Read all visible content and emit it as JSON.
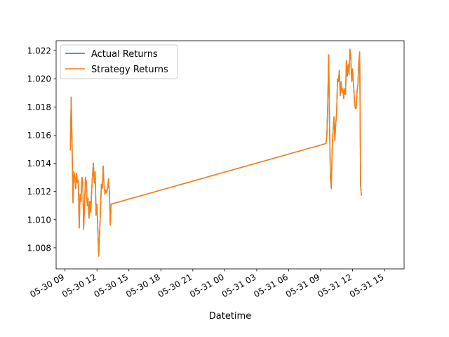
{
  "chart_data": {
    "type": "line",
    "title": "",
    "xlabel": "Datetime",
    "ylabel": "",
    "x_range": [
      "2023-05-30T08:10",
      "2023-05-31T16:50"
    ],
    "ylim": [
      1.0065,
      1.0227
    ],
    "grid": false,
    "legend_position": "top-left",
    "x_tick_labels": [
      "05-30 09",
      "05-30 12",
      "05-30 15",
      "05-30 18",
      "05-30 21",
      "05-31 00",
      "05-31 03",
      "05-31 06",
      "05-31 09",
      "05-31 12",
      "05-31 15"
    ],
    "x_ticks": [
      "2023-05-30T09:00",
      "2023-05-30T12:00",
      "2023-05-30T15:00",
      "2023-05-30T18:00",
      "2023-05-30T21:00",
      "2023-05-31T00:00",
      "2023-05-31T03:00",
      "2023-05-31T06:00",
      "2023-05-31T09:00",
      "2023-05-31T12:00",
      "2023-05-31T15:00"
    ],
    "y_ticks": [
      1.008,
      1.01,
      1.012,
      1.014,
      1.016,
      1.018,
      1.02,
      1.022
    ],
    "y_tick_labels": [
      "1.008",
      "1.010",
      "1.012",
      "1.014",
      "1.016",
      "1.018",
      "1.020",
      "1.022"
    ],
    "series": [
      {
        "name": "Actual Returns",
        "color": "#1f77b4",
        "points": [
          [
            "2023-05-30T09:30",
            1.0149
          ],
          [
            "2023-05-30T09:35",
            1.0187
          ],
          [
            "2023-05-30T09:40",
            1.0152
          ],
          [
            "2023-05-30T09:45",
            1.0112
          ],
          [
            "2023-05-30T09:50",
            1.0134
          ],
          [
            "2023-05-30T09:55",
            1.013
          ],
          [
            "2023-05-30T10:00",
            1.0122
          ],
          [
            "2023-05-30T10:05",
            1.0133
          ],
          [
            "2023-05-30T10:10",
            1.0126
          ],
          [
            "2023-05-30T10:15",
            1.0128
          ],
          [
            "2023-05-30T10:20",
            1.0094
          ],
          [
            "2023-05-30T10:25",
            1.0118
          ],
          [
            "2023-05-30T10:30",
            1.0113
          ],
          [
            "2023-05-30T10:35",
            1.013
          ],
          [
            "2023-05-30T10:40",
            1.0127
          ],
          [
            "2023-05-30T10:45",
            1.0093
          ],
          [
            "2023-05-30T10:50",
            1.011
          ],
          [
            "2023-05-30T10:55",
            1.013
          ],
          [
            "2023-05-30T11:00",
            1.0127
          ],
          [
            "2023-05-30T11:05",
            1.011
          ],
          [
            "2023-05-30T11:10",
            1.0115
          ],
          [
            "2023-05-30T11:15",
            1.0101
          ],
          [
            "2023-05-30T11:20",
            1.0113
          ],
          [
            "2023-05-30T11:25",
            1.0105
          ],
          [
            "2023-05-30T11:30",
            1.012
          ],
          [
            "2023-05-30T11:35",
            1.0132
          ],
          [
            "2023-05-30T11:40",
            1.014
          ],
          [
            "2023-05-30T11:45",
            1.0126
          ],
          [
            "2023-05-30T11:50",
            1.0134
          ],
          [
            "2023-05-30T11:55",
            1.0103
          ],
          [
            "2023-05-30T12:00",
            1.0111
          ],
          [
            "2023-05-30T12:05",
            1.0093
          ],
          [
            "2023-05-30T12:10",
            1.0074
          ],
          [
            "2023-05-30T12:15",
            1.0091
          ],
          [
            "2023-05-30T12:20",
            1.0107
          ],
          [
            "2023-05-30T12:25",
            1.0125
          ],
          [
            "2023-05-30T12:30",
            1.0122
          ],
          [
            "2023-05-30T12:35",
            1.0138
          ],
          [
            "2023-05-30T12:40",
            1.0124
          ],
          [
            "2023-05-30T12:45",
            1.0118
          ],
          [
            "2023-05-30T12:50",
            1.0121
          ],
          [
            "2023-05-30T12:55",
            1.0119
          ],
          [
            "2023-05-30T13:00",
            1.0122
          ],
          [
            "2023-05-30T13:05",
            1.0129
          ],
          [
            "2023-05-30T13:10",
            1.012
          ],
          [
            "2023-05-30T13:15",
            1.0096
          ],
          [
            "2023-05-30T13:20",
            1.0111
          ],
          [
            "2023-05-31T09:30",
            1.0154
          ],
          [
            "2023-05-31T09:35",
            1.016
          ],
          [
            "2023-05-31T09:40",
            1.0182
          ],
          [
            "2023-05-31T09:45",
            1.0217
          ],
          [
            "2023-05-31T09:50",
            1.0168
          ],
          [
            "2023-05-31T09:55",
            1.013
          ],
          [
            "2023-05-31T10:00",
            1.0122
          ],
          [
            "2023-05-31T10:05",
            1.015
          ],
          [
            "2023-05-31T10:10",
            1.0163
          ],
          [
            "2023-05-31T10:15",
            1.0173
          ],
          [
            "2023-05-31T10:20",
            1.0156
          ],
          [
            "2023-05-31T10:25",
            1.0168
          ],
          [
            "2023-05-31T10:30",
            1.0176
          ],
          [
            "2023-05-31T10:35",
            1.02
          ],
          [
            "2023-05-31T10:40",
            1.0198
          ],
          [
            "2023-05-31T10:45",
            1.0206
          ],
          [
            "2023-05-31T10:50",
            1.0188
          ],
          [
            "2023-05-31T10:55",
            1.0198
          ],
          [
            "2023-05-31T11:00",
            1.019
          ],
          [
            "2023-05-31T11:05",
            1.0193
          ],
          [
            "2023-05-31T11:10",
            1.0186
          ],
          [
            "2023-05-31T11:15",
            1.0193
          ],
          [
            "2023-05-31T11:20",
            1.0189
          ],
          [
            "2023-05-31T11:25",
            1.0213
          ],
          [
            "2023-05-31T11:30",
            1.0202
          ],
          [
            "2023-05-31T11:35",
            1.021
          ],
          [
            "2023-05-31T11:40",
            1.0203
          ],
          [
            "2023-05-31T11:45",
            1.0221
          ],
          [
            "2023-05-31T11:50",
            1.0214
          ],
          [
            "2023-05-31T11:55",
            1.0198
          ],
          [
            "2023-05-31T12:00",
            1.0207
          ],
          [
            "2023-05-31T12:05",
            1.0196
          ],
          [
            "2023-05-31T12:10",
            1.0186
          ],
          [
            "2023-05-31T12:15",
            1.0179
          ],
          [
            "2023-05-31T12:20",
            1.0179
          ],
          [
            "2023-05-31T12:25",
            1.0191
          ],
          [
            "2023-05-31T12:30",
            1.0196
          ],
          [
            "2023-05-31T12:35",
            1.0212
          ],
          [
            "2023-05-31T12:40",
            1.0219
          ],
          [
            "2023-05-31T12:45",
            1.0124
          ],
          [
            "2023-05-31T12:50",
            1.0117
          ]
        ]
      },
      {
        "name": "Strategy Returns",
        "color": "#ff7f0e",
        "same_as": "Actual Returns"
      }
    ]
  }
}
